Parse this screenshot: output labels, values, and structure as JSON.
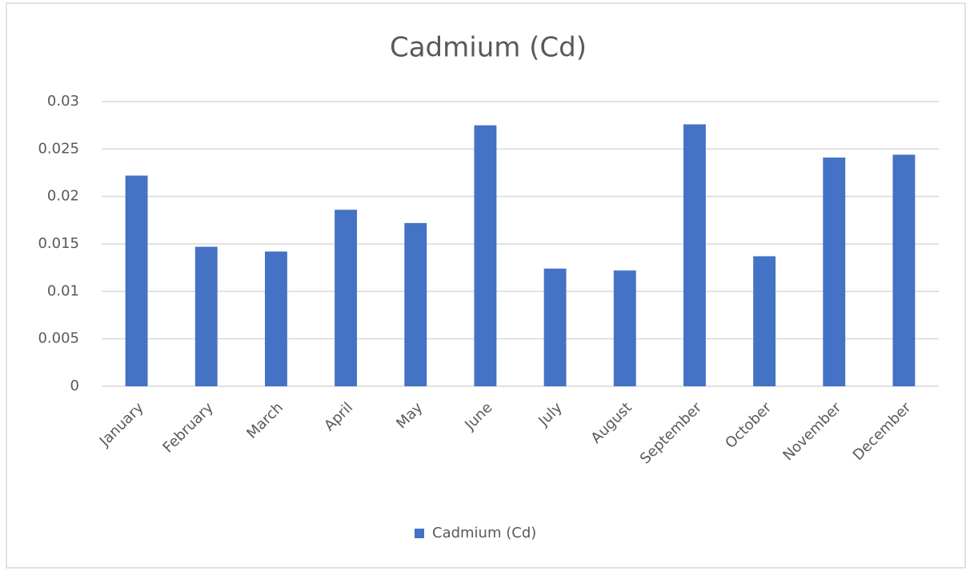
{
  "chart_data": {
    "type": "bar",
    "title": "Cadmium (Cd)",
    "categories": [
      "January",
      "February",
      "March",
      "April",
      "May",
      "June",
      "July",
      "August",
      "September",
      "October",
      "November",
      "December"
    ],
    "series": [
      {
        "name": "Cadmium (Cd)",
        "color": "#4472c4",
        "values": [
          0.0222,
          0.0147,
          0.0142,
          0.0186,
          0.0172,
          0.0275,
          0.0124,
          0.0122,
          0.0276,
          0.0137,
          0.0241,
          0.0244
        ]
      }
    ],
    "ylim": [
      0,
      0.03
    ],
    "yticks": [
      0,
      0.005,
      0.01,
      0.015,
      0.02,
      0.025,
      0.03
    ],
    "grid": true,
    "legend": "bottom"
  }
}
